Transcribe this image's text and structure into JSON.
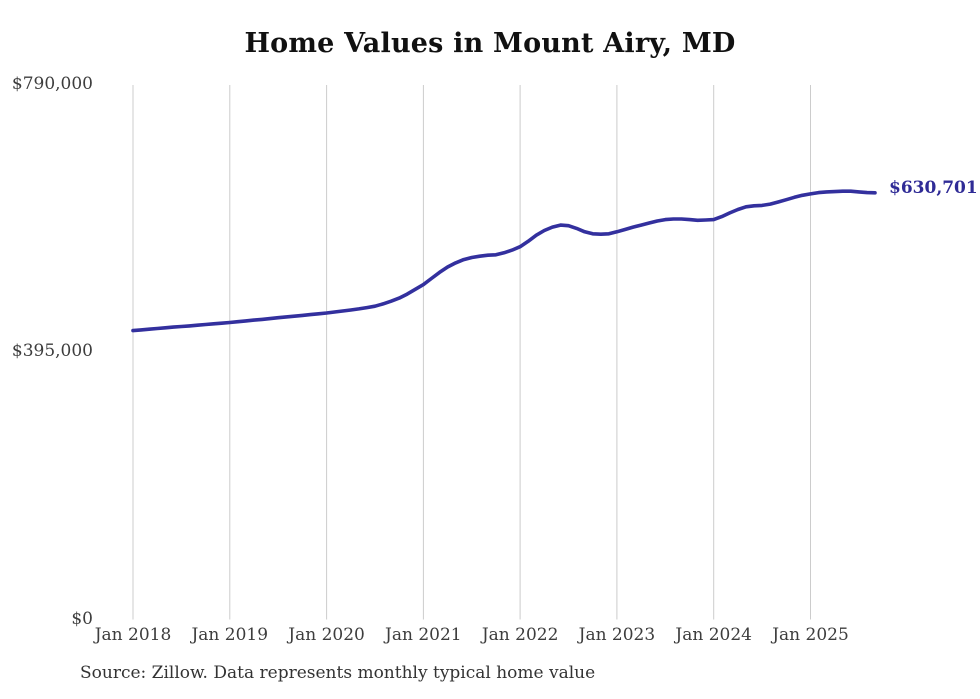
{
  "chart": {
    "title": "Home Values in Mount Airy, MD",
    "source": "Source: Zillow. Data represents monthly typical home value"
  },
  "colors": {
    "background": "#ffffff",
    "line": "#33309e",
    "grid": "#cccccc",
    "title_text": "#111111",
    "axis_text": "#3d3d3d",
    "end_label_text": "#2f2b96",
    "source_text": "#333333"
  },
  "chart_data": {
    "type": "line",
    "title": "Home Values in Mount Airy, MD",
    "xlabel": "",
    "ylabel": "",
    "series_name": "Monthly typical home value",
    "ylim": [
      0,
      790000
    ],
    "grid": "vertical-only",
    "legend": "none",
    "end_label": "$630,701",
    "final_value": 630701,
    "y_ticks": [
      {
        "label": "$0",
        "value": 0
      },
      {
        "label": "$395,000",
        "value": 395000
      },
      {
        "label": "$790,000",
        "value": 790000
      }
    ],
    "x_ticks": [
      {
        "label": "Jan 2018",
        "month": "2018-01"
      },
      {
        "label": "Jan 2019",
        "month": "2019-01"
      },
      {
        "label": "Jan 2020",
        "month": "2020-01"
      },
      {
        "label": "Jan 2021",
        "month": "2021-01"
      },
      {
        "label": "Jan 2022",
        "month": "2022-01"
      },
      {
        "label": "Jan 2023",
        "month": "2023-01"
      },
      {
        "label": "Jan 2024",
        "month": "2024-01"
      },
      {
        "label": "Jan 2025",
        "month": "2025-01"
      }
    ],
    "months": [
      "2018-01",
      "2018-02",
      "2018-03",
      "2018-04",
      "2018-05",
      "2018-06",
      "2018-07",
      "2018-08",
      "2018-09",
      "2018-10",
      "2018-11",
      "2018-12",
      "2019-01",
      "2019-02",
      "2019-03",
      "2019-04",
      "2019-05",
      "2019-06",
      "2019-07",
      "2019-08",
      "2019-09",
      "2019-10",
      "2019-11",
      "2019-12",
      "2020-01",
      "2020-02",
      "2020-03",
      "2020-04",
      "2020-05",
      "2020-06",
      "2020-07",
      "2020-08",
      "2020-09",
      "2020-10",
      "2020-11",
      "2020-12",
      "2021-01",
      "2021-02",
      "2021-03",
      "2021-04",
      "2021-05",
      "2021-06",
      "2021-07",
      "2021-08",
      "2021-09",
      "2021-10",
      "2021-11",
      "2021-12",
      "2022-01",
      "2022-02",
      "2022-03",
      "2022-04",
      "2022-05",
      "2022-06",
      "2022-07",
      "2022-08",
      "2022-09",
      "2022-10",
      "2022-11",
      "2022-12",
      "2023-01",
      "2023-02",
      "2023-03",
      "2023-04",
      "2023-05",
      "2023-06",
      "2023-07",
      "2023-08",
      "2023-09",
      "2023-10",
      "2023-11",
      "2023-12",
      "2024-01",
      "2024-02",
      "2024-03",
      "2024-04",
      "2024-05",
      "2024-06",
      "2024-07",
      "2024-08",
      "2024-09",
      "2024-10",
      "2024-11",
      "2024-12",
      "2025-01",
      "2025-02",
      "2025-03",
      "2025-04",
      "2025-05",
      "2025-06",
      "2025-07",
      "2025-08",
      "2025-09"
    ],
    "values": [
      427000,
      428000,
      429000,
      430100,
      431200,
      432100,
      433000,
      434000,
      435000,
      436000,
      437000,
      438000,
      439000,
      440200,
      441300,
      442500,
      443600,
      444800,
      446000,
      447200,
      448300,
      449500,
      450700,
      451800,
      453000,
      454500,
      456000,
      457500,
      459000,
      461000,
      463000,
      466500,
      470500,
      475000,
      481000,
      488000,
      495000,
      504000,
      513000,
      521000,
      527000,
      532000,
      535000,
      537000,
      538500,
      539000,
      542000,
      546000,
      551000,
      559000,
      568000,
      575000,
      580000,
      583000,
      582000,
      578000,
      573000,
      570000,
      569500,
      570000,
      573000,
      576500,
      580000,
      583000,
      586000,
      589000,
      591000,
      592000,
      592000,
      591000,
      590000,
      590500,
      591000,
      595500,
      601000,
      606000,
      610000,
      611500,
      612000,
      614000,
      617000,
      620500,
      624000,
      627000,
      629000,
      631000,
      632000,
      632500,
      633000,
      633000,
      632000,
      631000,
      630701
    ]
  }
}
